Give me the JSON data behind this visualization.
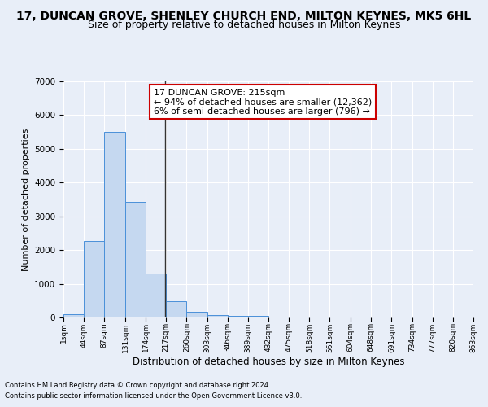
{
  "title1": "17, DUNCAN GROVE, SHENLEY CHURCH END, MILTON KEYNES, MK5 6HL",
  "title2": "Size of property relative to detached houses in Milton Keynes",
  "xlabel": "Distribution of detached houses by size in Milton Keynes",
  "ylabel": "Number of detached properties",
  "footnote1": "Contains HM Land Registry data © Crown copyright and database right 2024.",
  "footnote2": "Contains public sector information licensed under the Open Government Licence v3.0.",
  "bar_values": [
    100,
    2280,
    5500,
    3420,
    1300,
    480,
    160,
    80,
    60,
    60,
    0,
    0,
    0,
    0,
    0,
    0,
    0,
    0,
    0,
    0
  ],
  "bin_edges": [
    1,
    44,
    87,
    131,
    174,
    217,
    260,
    303,
    346,
    389,
    432,
    475,
    518,
    561,
    604,
    648,
    691,
    734,
    777,
    820,
    863
  ],
  "x_tick_labels": [
    "1sqm",
    "44sqm",
    "87sqm",
    "131sqm",
    "174sqm",
    "217sqm",
    "260sqm",
    "303sqm",
    "346sqm",
    "389sqm",
    "432sqm",
    "475sqm",
    "518sqm",
    "561sqm",
    "604sqm",
    "648sqm",
    "691sqm",
    "734sqm",
    "777sqm",
    "820sqm",
    "863sqm"
  ],
  "ylim": [
    0,
    7000
  ],
  "yticks": [
    0,
    1000,
    2000,
    3000,
    4000,
    5000,
    6000,
    7000
  ],
  "bar_color": "#c5d8f0",
  "bar_edge_color": "#4a90d9",
  "property_size": 215,
  "vline_color": "#333333",
  "annotation_text_line1": "17 DUNCAN GROVE: 215sqm",
  "annotation_text_line2": "← 94% of detached houses are smaller (12,362)",
  "annotation_text_line3": "6% of semi-detached houses are larger (796) →",
  "annotation_box_color": "#ffffff",
  "annotation_box_edge": "#cc0000",
  "background_color": "#e8eef8",
  "grid_color": "#ffffff",
  "title1_fontsize": 10,
  "title2_fontsize": 9,
  "annot_fontsize": 8
}
